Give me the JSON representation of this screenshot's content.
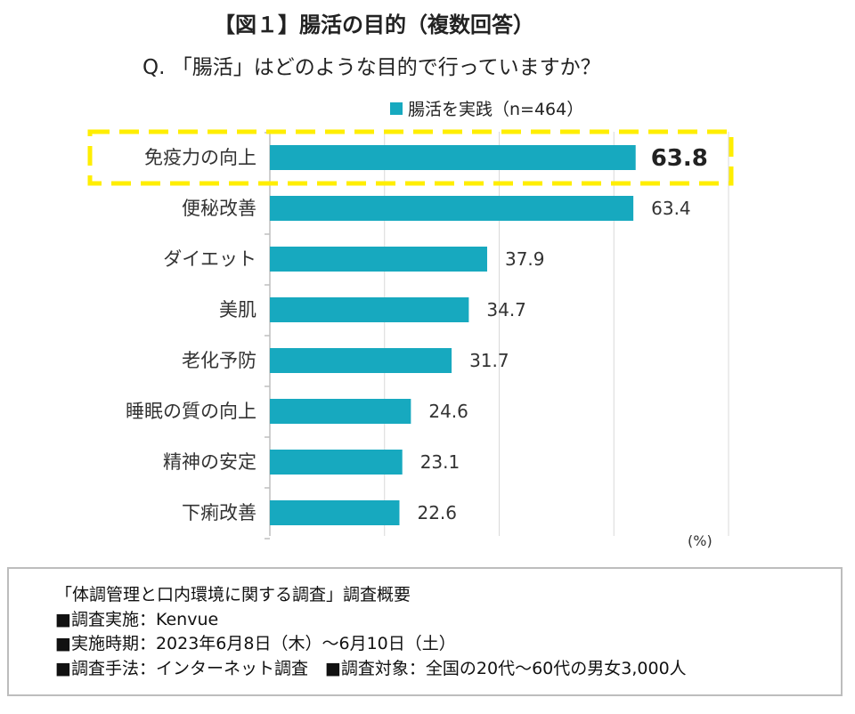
{
  "figure_title": "【図１】腸活の目的（複数回答）",
  "question": "Q. 「腸活」はどのような目的で行っていますか？",
  "unit_label": "(%)",
  "highlight_color": "#ffee00",
  "bar_color": "#17a9bf",
  "chart_data": {
    "type": "bar",
    "orientation": "horizontal",
    "categories": [
      "免疫力の向上",
      "便秘改善",
      "ダイエット",
      "美肌",
      "老化予防",
      "睡眠の質の向上",
      "精神の安定",
      "下痢改善"
    ],
    "series": [
      {
        "name": "腸活を実践（n=464）",
        "values": [
          63.8,
          63.4,
          37.9,
          34.7,
          31.7,
          24.6,
          23.1,
          22.6
        ]
      }
    ],
    "value_labels": [
      "63.8",
      "63.4",
      "37.9",
      "34.7",
      "31.7",
      "24.6",
      "23.1",
      "22.6"
    ],
    "xlim": [
      0,
      80
    ],
    "grid": true,
    "legend_position": "top",
    "highlighted_category": "免疫力の向上"
  },
  "notes": {
    "survey_name": "「体調管理と口内環境に関する調査」調査概要",
    "conductor": "■調査実施：Kenvue",
    "period": "■実施時期：2023年6月8日（木）～6月10日（土）",
    "method_and_target": "■調査手法：インターネット調査　■調査対象：全国の20代～60代の男女3,000人"
  }
}
